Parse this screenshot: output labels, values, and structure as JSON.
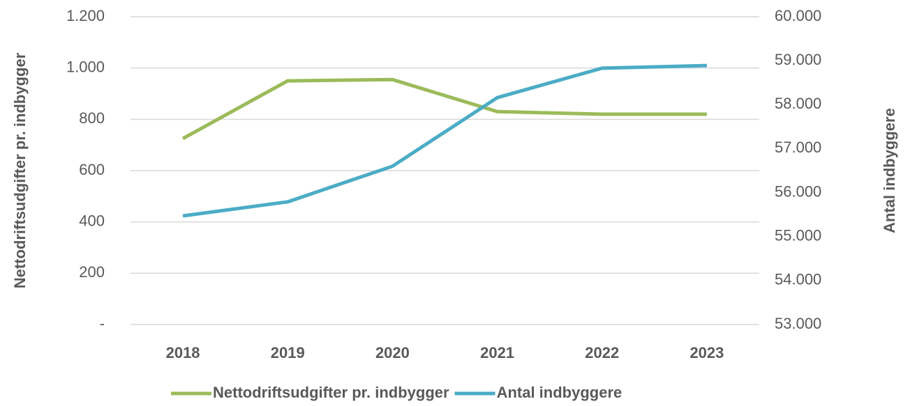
{
  "chart_data": {
    "type": "line",
    "categories": [
      "2018",
      "2019",
      "2020",
      "2021",
      "2022",
      "2023"
    ],
    "series": [
      {
        "name": "Nettodriftsudgifter pr. indbygger",
        "color": "#9bbb59",
        "values": [
          725,
          950,
          955,
          830,
          820,
          820
        ]
      },
      {
        "name": "Antal indbyggere",
        "color": "#4bacc6",
        "axis": "y2",
        "values": [
          55470,
          55790,
          56600,
          58160,
          58830,
          58890
        ]
      }
    ],
    "ylabel": "Nettodriftsudgifter pr. indbygger",
    "y2label": "Antal indbyggere",
    "ylim": [
      0,
      1200
    ],
    "yticks": [
      {
        "value": 0,
        "label": "-"
      },
      200,
      400,
      600,
      800,
      {
        "value": 1000,
        "label": "1.000"
      },
      {
        "value": 1200,
        "label": "1.200"
      }
    ],
    "y2lim": [
      53000,
      60000
    ],
    "y2ticks": [
      {
        "value": 53000,
        "label": "53.000"
      },
      {
        "value": 54000,
        "label": "54.000"
      },
      {
        "value": 55000,
        "label": "55.000"
      },
      {
        "value": 56000,
        "label": "56.000"
      },
      {
        "value": 57000,
        "label": "57.000"
      },
      {
        "value": 58000,
        "label": "58.000"
      },
      {
        "value": 59000,
        "label": "59.000"
      },
      {
        "value": 60000,
        "label": "60.000"
      }
    ],
    "grid": true,
    "legend": "bottom"
  }
}
